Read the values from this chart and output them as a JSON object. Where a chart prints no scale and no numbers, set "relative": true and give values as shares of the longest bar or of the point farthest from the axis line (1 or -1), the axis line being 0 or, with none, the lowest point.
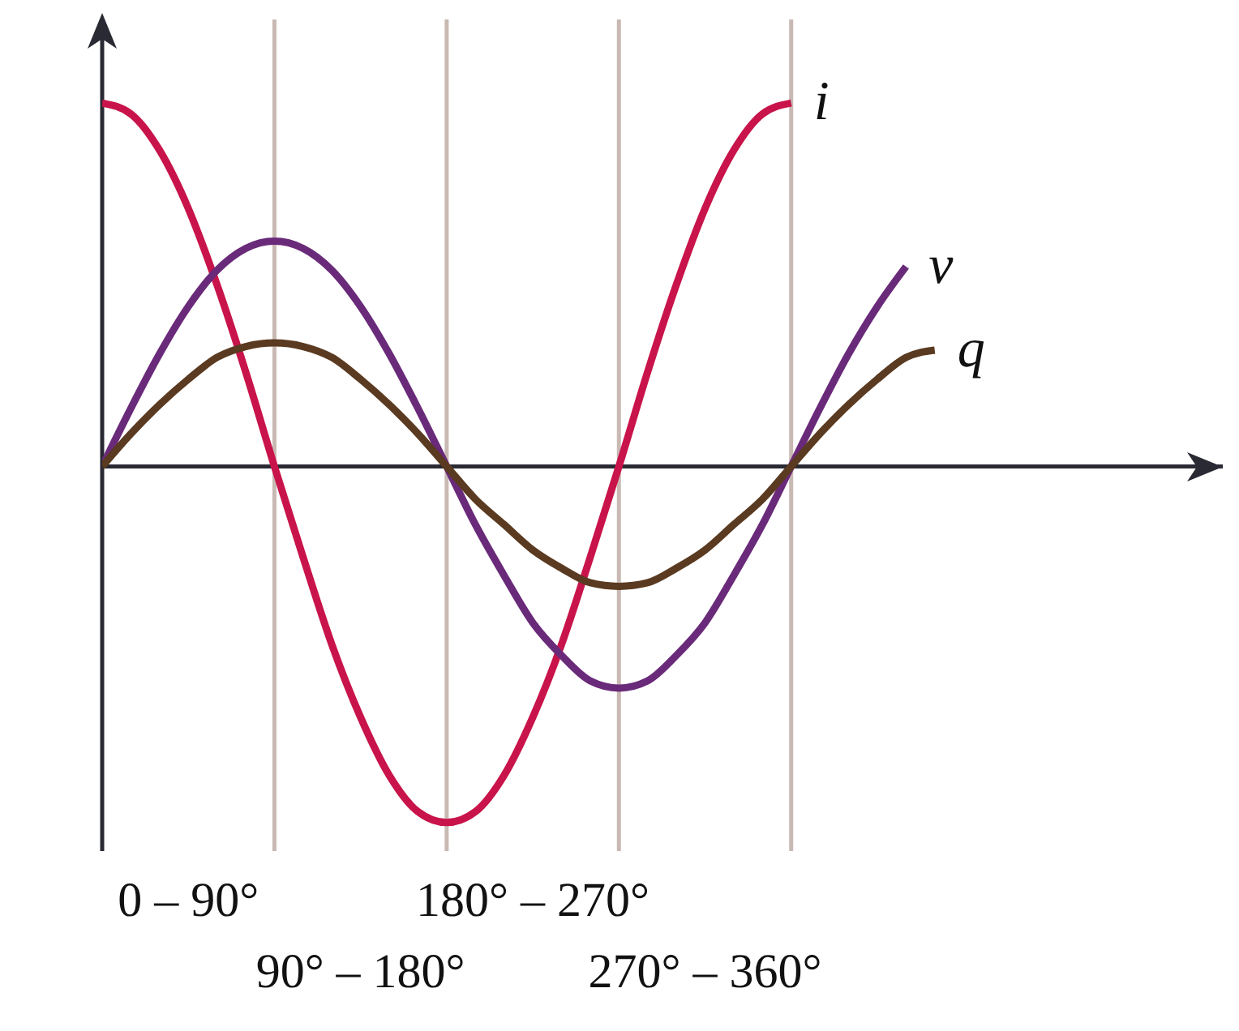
{
  "chart_data": {
    "type": "line",
    "relative": true,
    "categories": [
      null,
      null,
      null,
      "0 – 90°",
      null,
      null,
      null,
      null,
      null,
      "90° – 180°",
      null,
      null,
      null,
      null,
      null,
      "180° – 270°",
      null,
      null,
      null,
      null,
      null,
      "270° – 360°",
      null,
      null,
      null,
      null,
      null,
      null,
      null,
      null
    ],
    "grid": "x",
    "legend": false,
    "marker": "none",
    "line_style": "solid",
    "series": [
      {
        "name": "i",
        "color": "#c8144a",
        "values": [
          1,
          0.97,
          0.87,
          0.71,
          0.5,
          0.26,
          0,
          -0.25,
          -0.49,
          -0.69,
          -0.85,
          -0.95,
          -0.98,
          -0.95,
          -0.85,
          -0.69,
          -0.49,
          -0.25,
          0,
          0.26,
          0.5,
          0.71,
          0.87,
          0.97,
          1,
          null,
          null,
          null,
          null,
          null
        ]
      },
      {
        "name": "v",
        "color": "#6a2a7a",
        "values": [
          0,
          0.16,
          0.31,
          0.44,
          0.54,
          0.6,
          0.62,
          0.6,
          0.54,
          0.44,
          0.31,
          0.16,
          0,
          -0.16,
          -0.3,
          -0.43,
          -0.52,
          -0.59,
          -0.61,
          -0.59,
          -0.52,
          -0.43,
          -0.3,
          -0.16,
          0,
          0.16,
          0.31,
          0.44,
          0.55,
          null
        ]
      },
      {
        "name": "q",
        "color": "#5a3a20",
        "values": [
          0,
          0.09,
          0.17,
          0.24,
          0.3,
          0.33,
          0.34,
          0.33,
          0.3,
          0.24,
          0.17,
          0.09,
          0,
          -0.09,
          -0.16,
          -0.23,
          -0.28,
          -0.32,
          -0.33,
          -0.32,
          -0.28,
          -0.23,
          -0.16,
          -0.09,
          0,
          0.09,
          0.17,
          0.24,
          0.3,
          0.32
        ]
      }
    ]
  }
}
